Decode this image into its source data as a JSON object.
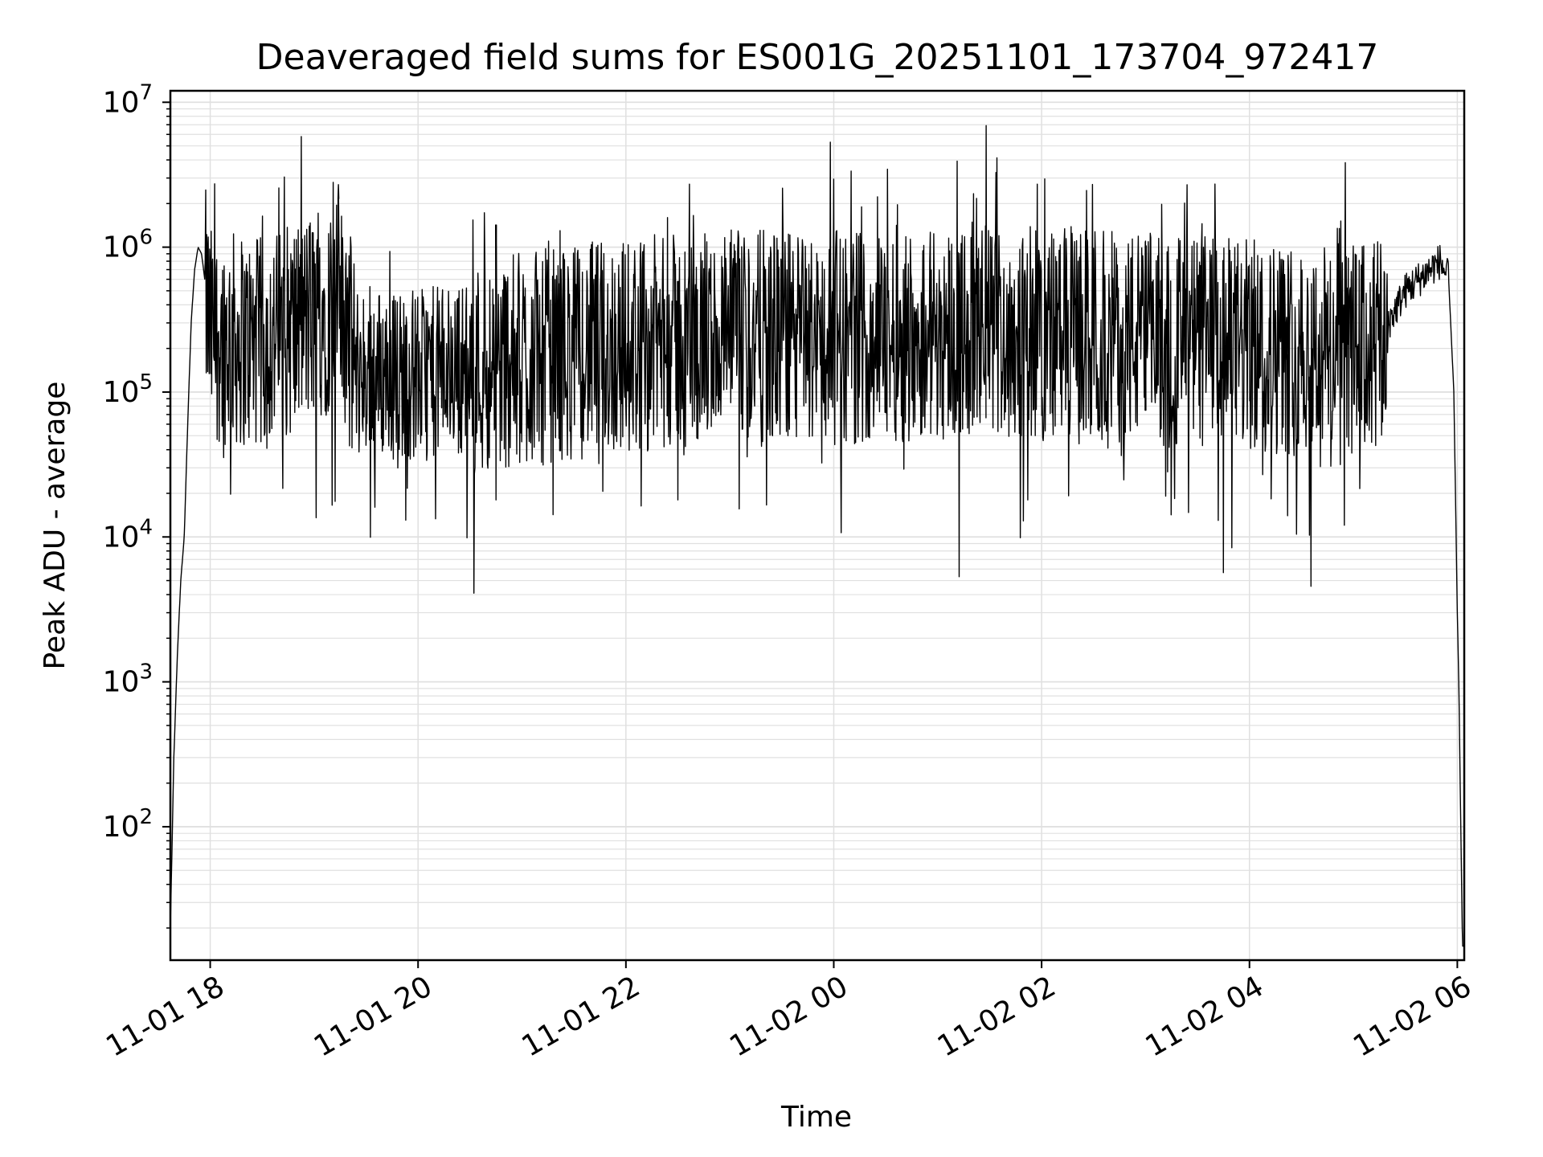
{
  "chart_data": {
    "type": "line",
    "title": "Deaveraged field sums for ES001G_20251101_173704_972417",
    "xlabel": "Time",
    "ylabel": "Peak ADU - average",
    "yscale": "log",
    "ylim": [
      12,
      12000000
    ],
    "xlim": [
      "2025-11-01 17:37",
      "2025-11-02 06:04"
    ],
    "grid": true,
    "x_ticks": [
      {
        "t": "2025-11-01 18:00",
        "label": "11-01 18"
      },
      {
        "t": "2025-11-01 20:00",
        "label": "11-01 20"
      },
      {
        "t": "2025-11-01 22:00",
        "label": "11-01 22"
      },
      {
        "t": "2025-11-02 00:00",
        "label": "11-02 00"
      },
      {
        "t": "2025-11-02 02:00",
        "label": "11-02 02"
      },
      {
        "t": "2025-11-02 04:00",
        "label": "11-02 04"
      },
      {
        "t": "2025-11-02 06:00",
        "label": "11-02 06"
      }
    ],
    "y_ticks": [
      {
        "value": 100,
        "base": "10",
        "exp": "2"
      },
      {
        "value": 1000,
        "base": "10",
        "exp": "3"
      },
      {
        "value": 10000,
        "base": "10",
        "exp": "4"
      },
      {
        "value": 100000,
        "base": "10",
        "exp": "5"
      },
      {
        "value": 1000000,
        "base": "10",
        "exp": "6"
      },
      {
        "value": 10000000,
        "base": "10",
        "exp": "7"
      }
    ],
    "line_color": "#000000",
    "grid_color": "#e0e0e0",
    "series": [
      {
        "x": [
          "2025-11-01 17:37",
          "2025-11-01 17:39",
          "2025-11-01 17:41",
          "2025-11-01 17:43",
          "2025-11-01 17:45",
          "2025-11-01 17:47",
          "2025-11-01 17:49",
          "2025-11-01 17:51",
          "2025-11-01 17:53",
          "2025-11-01 17:55",
          "2025-11-01 18:00",
          "2025-11-01 18:30",
          "2025-11-01 19:00",
          "2025-11-01 19:15",
          "2025-11-01 19:25",
          "2025-11-01 20:00",
          "2025-11-01 21:00",
          "2025-11-01 22:00",
          "2025-11-01 23:00",
          "2025-11-01 23:58",
          "2025-11-02 00:30",
          "2025-11-02 01:30",
          "2025-11-02 02:00",
          "2025-11-02 03:00",
          "2025-11-02 03:45",
          "2025-11-02 04:30",
          "2025-11-02 05:15",
          "2025-11-02 05:30",
          "2025-11-02 05:50",
          "2025-11-02 05:55",
          "2025-11-02 05:58",
          "2025-11-02 06:00",
          "2025-11-02 06:01",
          "2025-11-02 06:02",
          "2025-11-02 06:03"
        ],
        "y": [
          20,
          300,
          1500,
          5000,
          10000,
          60000,
          300000,
          700000,
          1000000,
          900000,
          300000,
          250000,
          400000,
          500000,
          160000,
          150000,
          200000,
          250000,
          280000,
          280000,
          300000,
          320000,
          300000,
          280000,
          250000,
          240000,
          230000,
          500000,
          800000,
          600000,
          100000,
          3000,
          800,
          100,
          15
        ]
      }
    ],
    "spikes": [
      {
        "x": "2025-11-01 19:11",
        "y": 2800000
      },
      {
        "x": "2025-11-01 19:14",
        "y": 2700000
      },
      {
        "x": "2025-11-01 21:22",
        "y": 1300000
      },
      {
        "x": "2025-11-01 22:24",
        "y": 1600000
      },
      {
        "x": "2025-11-01 23:58",
        "y": 5300000
      },
      {
        "x": "2025-11-02 01:28",
        "y": 6900000
      },
      {
        "x": "2025-11-02 03:00",
        "y": 1100000
      },
      {
        "x": "2025-11-02 05:12",
        "y": 1050000
      }
    ],
    "dips": [
      {
        "x": "2025-11-01 20:45",
        "y": 18000
      },
      {
        "x": "2025-11-01 22:30",
        "y": 18000
      },
      {
        "x": "2025-11-02 01:52",
        "y": 18000
      },
      {
        "x": "2025-11-02 03:42",
        "y": 13000
      },
      {
        "x": "2025-11-02 04:22",
        "y": 14000
      }
    ]
  }
}
